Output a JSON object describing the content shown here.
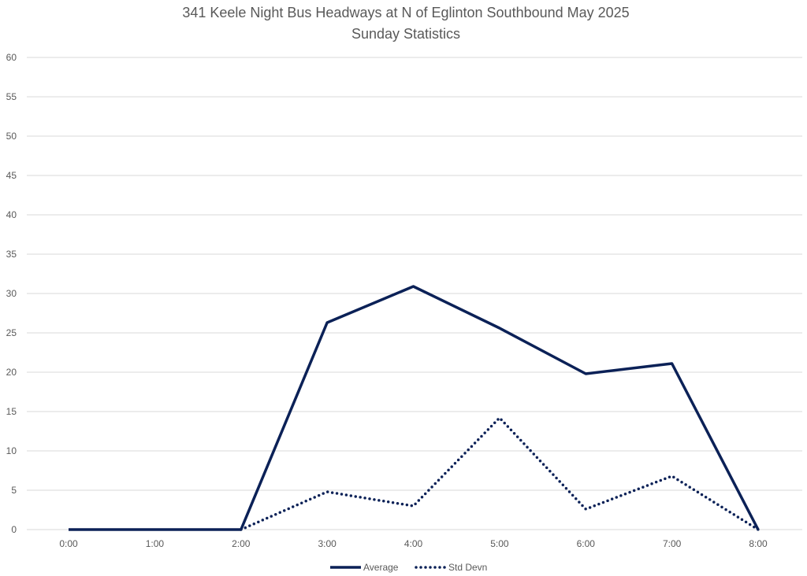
{
  "chart_data": {
    "type": "line",
    "title_lines": [
      "341 Keele Night Bus Headways at N of Eglinton Southbound May 2025",
      "Sunday Statistics"
    ],
    "xlabel": "",
    "ylabel": "",
    "categories": [
      "0:00",
      "1:00",
      "2:00",
      "3:00",
      "4:00",
      "5:00",
      "6:00",
      "7:00",
      "8:00"
    ],
    "ylim": [
      0,
      60
    ],
    "yticks": [
      0,
      5,
      10,
      15,
      20,
      25,
      30,
      35,
      40,
      45,
      50,
      55,
      60
    ],
    "grid": true,
    "legend_position": "bottom",
    "series": [
      {
        "name": "Average",
        "style": "solid",
        "color": "#0b2157",
        "values": [
          0,
          0,
          0,
          26.3,
          30.9,
          25.6,
          19.8,
          21.1,
          0
        ]
      },
      {
        "name": "Std Devn",
        "style": "dotted",
        "color": "#0b2157",
        "values": [
          null,
          null,
          0,
          4.8,
          3.0,
          14.2,
          2.6,
          6.8,
          0
        ]
      }
    ]
  }
}
